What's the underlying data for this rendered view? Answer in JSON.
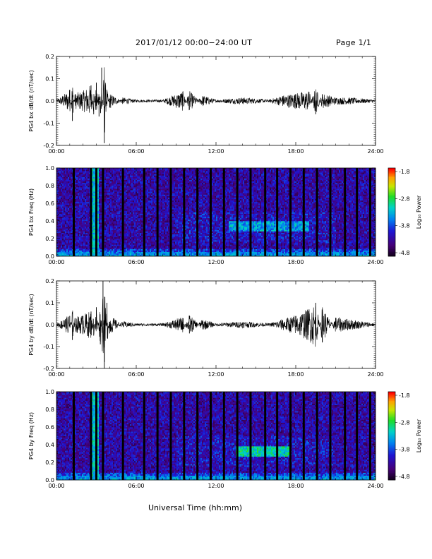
{
  "header": {
    "date_range": "2017/01/12  00:00−24:00 UT",
    "page": "Page 1/1"
  },
  "footer": {
    "xlabel": "Universal Time (hh:mm)"
  },
  "chart_data": [
    {
      "type": "line",
      "title": "",
      "ylabel": "PG4 bx dB/dt (nT/sec)",
      "xlabel": "",
      "xlim": [
        0,
        24
      ],
      "ylim": [
        -0.2,
        0.2
      ],
      "xticks": [
        "00:00",
        "06:00",
        "12:00",
        "18:00",
        "24:00"
      ],
      "yticks": [
        "-0.2",
        "-0.1",
        "0.0",
        "0.1",
        "0.2"
      ],
      "series": [
        {
          "x": [
            0,
            0.5,
            1.0,
            1.2,
            1.4,
            2.0,
            2.6,
            2.8,
            3.0,
            3.2,
            3.4,
            3.6,
            3.8,
            4.0,
            5.0,
            6.0,
            8.0,
            9.5,
            10.0,
            11.0,
            12.0,
            14.0,
            16.0,
            17.0,
            18.0,
            19.0,
            19.5,
            20.0,
            21.0,
            22.0,
            24.0
          ],
          "y": [
            0.0,
            0.02,
            0.05,
            -0.09,
            0.03,
            0.04,
            0.07,
            -0.06,
            0.08,
            -0.07,
            0.15,
            -0.19,
            0.05,
            -0.03,
            0.01,
            0.0,
            0.0,
            0.04,
            -0.04,
            0.02,
            0.0,
            0.01,
            0.0,
            0.02,
            0.03,
            0.04,
            -0.06,
            0.03,
            0.01,
            0.01,
            0.0
          ]
        }
      ]
    },
    {
      "type": "heatmap",
      "title": "",
      "ylabel": "PG4 bx Freq (Hz)",
      "xlim": [
        0,
        24
      ],
      "ylim": [
        0.0,
        1.0
      ],
      "xticks": [
        "00:00",
        "06:00",
        "12:00",
        "18:00",
        "24:00"
      ],
      "yticks": [
        "0.0",
        "0.2",
        "0.4",
        "0.6",
        "0.8",
        "1.0"
      ],
      "colorbar": {
        "label": "Log₁₀ Power",
        "ticks": [
          "-1.8",
          "-2.8",
          "-3.8",
          "-4.8"
        ],
        "range": [
          -4.8,
          -1.8
        ]
      },
      "data_gaps_hours": [
        1.3,
        2.6,
        3.0,
        3.5,
        5.0,
        6.6,
        7.6,
        8.6,
        9.6,
        10.6,
        11.6,
        12.6,
        13.6,
        14.6,
        15.7,
        16.6,
        17.6,
        18.6,
        19.6,
        20.6,
        21.7,
        22.6,
        23.6
      ],
      "features": [
        {
          "name": "broadband enhancement",
          "x": [
            2.5,
            3.2
          ],
          "y": [
            0.0,
            1.0
          ],
          "level": -2.9
        },
        {
          "name": "emission band",
          "x": [
            13.0,
            19.0
          ],
          "y": [
            0.28,
            0.4
          ],
          "level": -3.2
        },
        {
          "name": "low-frequency band",
          "x": [
            0,
            24
          ],
          "y": [
            0.0,
            0.05
          ],
          "level": -3.3
        }
      ]
    },
    {
      "type": "line",
      "title": "",
      "ylabel": "PG4 by dB/dt (nT/sec)",
      "xlim": [
        0,
        24
      ],
      "ylim": [
        -0.2,
        0.2
      ],
      "xticks": [
        "00:00",
        "06:00",
        "12:00",
        "18:00",
        "24:00"
      ],
      "yticks": [
        "-0.2",
        "-0.1",
        "0.0",
        "0.1",
        "0.2"
      ],
      "series": [
        {
          "x": [
            0,
            0.5,
            1.0,
            1.2,
            1.4,
            2.0,
            2.6,
            2.8,
            3.0,
            3.3,
            3.5,
            3.6,
            3.8,
            4.0,
            5.0,
            6.0,
            8.0,
            9.5,
            10.0,
            11.0,
            12.0,
            14.0,
            16.0,
            17.0,
            18.0,
            19.0,
            19.5,
            20.0,
            21.0,
            22.0,
            24.0
          ],
          "y": [
            0.0,
            0.02,
            0.04,
            -0.07,
            0.03,
            0.04,
            0.06,
            -0.05,
            0.08,
            -0.09,
            0.2,
            -0.2,
            0.1,
            -0.04,
            0.01,
            0.0,
            0.0,
            0.03,
            -0.04,
            0.02,
            0.0,
            0.01,
            0.0,
            0.02,
            0.04,
            0.07,
            0.1,
            -0.08,
            0.03,
            0.02,
            0.0
          ]
        }
      ]
    },
    {
      "type": "heatmap",
      "title": "",
      "ylabel": "PG4 by Freq (Hz)",
      "xlim": [
        0,
        24
      ],
      "ylim": [
        0.0,
        1.0
      ],
      "xticks": [
        "00:00",
        "06:00",
        "12:00",
        "18:00",
        "24:00"
      ],
      "yticks": [
        "0.0",
        "0.2",
        "0.4",
        "0.6",
        "0.8",
        "1.0"
      ],
      "colorbar": {
        "label": "Log₁₀ Power",
        "ticks": [
          "-1.8",
          "-2.8",
          "-3.8",
          "-4.8"
        ],
        "range": [
          -4.8,
          -1.8
        ]
      },
      "data_gaps_hours": [
        1.3,
        2.6,
        3.0,
        3.5,
        5.0,
        6.6,
        7.6,
        8.6,
        9.6,
        10.6,
        11.6,
        12.6,
        13.6,
        14.6,
        15.7,
        16.6,
        17.6,
        18.6,
        19.6,
        20.6,
        21.7,
        22.6,
        23.6
      ],
      "features": [
        {
          "name": "broadband enhancement",
          "x": [
            2.5,
            3.2
          ],
          "y": [
            0.0,
            1.0
          ],
          "level": -2.9
        },
        {
          "name": "emission band",
          "x": [
            13.5,
            17.5
          ],
          "y": [
            0.27,
            0.38
          ],
          "level": -2.9
        },
        {
          "name": "low-frequency band",
          "x": [
            0,
            24
          ],
          "y": [
            0.0,
            0.05
          ],
          "level": -3.3
        }
      ]
    }
  ]
}
